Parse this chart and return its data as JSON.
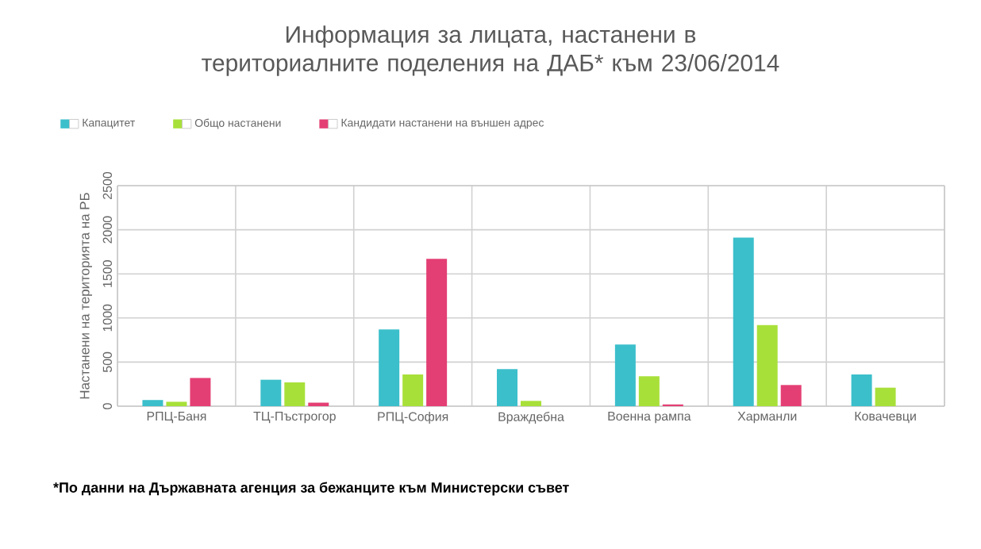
{
  "chart_data": {
    "type": "bar",
    "title": "Информация за лицата, настанени в териториалните поделения на ДАБ* към 23/06/2014",
    "ylabel": "Настанени на територията на РБ",
    "categories": [
      "РПЦ-Баня",
      "ТЦ-Пъстрогор",
      "РПЦ-София",
      "Враждебна",
      "Военна рампа",
      "Харманли",
      "Ковачевци"
    ],
    "series": [
      {
        "name": "Капацитет",
        "color": "#3bbfcb",
        "values": [
          70,
          300,
          870,
          420,
          700,
          1910,
          360
        ]
      },
      {
        "name": "Общо настанени",
        "color": "#a8e03a",
        "values": [
          50,
          270,
          360,
          60,
          340,
          920,
          210
        ]
      },
      {
        "name": "Кандидати настанени на външен адрес",
        "color": "#e43f74",
        "values": [
          320,
          40,
          1670,
          0,
          20,
          240,
          0
        ]
      }
    ],
    "ylim": [
      0,
      2500
    ],
    "yticks": [
      0,
      500,
      1000,
      1500,
      2000,
      2500
    ],
    "grid": true,
    "legend": "top left",
    "annotations": [
      "*По данни на Държавната агенция за бежанците към Министерски съвет"
    ]
  }
}
